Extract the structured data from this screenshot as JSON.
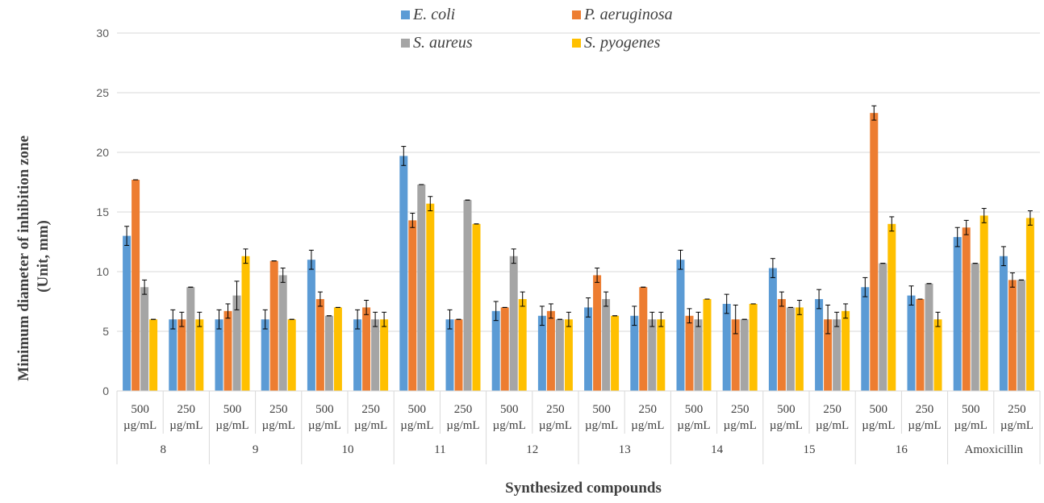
{
  "chart_data": {
    "type": "bar",
    "xlabel": "Synthesized compounds",
    "ylabel_lines": [
      "Minimum diameter of inhibition zone",
      "(Unit, mm)"
    ],
    "ylim": [
      0,
      30
    ],
    "yticks": [
      0,
      5,
      10,
      15,
      20,
      25,
      30
    ],
    "grid": true,
    "legend_position": "top",
    "groups": [
      "8",
      "9",
      "10",
      "11",
      "12",
      "13",
      "14",
      "15",
      "16",
      "Amoxicillin"
    ],
    "subcategories": [
      {
        "line1": "500",
        "line2": "µg/mL"
      },
      {
        "line1": "250",
        "line2": "µg/mL"
      }
    ],
    "series": [
      {
        "name": "E. coli",
        "color": "#5b9bd5",
        "values": [
          13.0,
          6.0,
          6.0,
          6.0,
          11.0,
          6.0,
          19.7,
          6.0,
          6.7,
          6.3,
          7.0,
          6.3,
          11.0,
          7.3,
          10.3,
          7.7,
          8.7,
          8.0,
          12.9,
          11.3
        ],
        "errors": [
          0.8,
          0.8,
          0.8,
          0.8,
          0.8,
          0.8,
          0.8,
          0.8,
          0.8,
          0.8,
          0.8,
          0.8,
          0.8,
          0.8,
          0.8,
          0.8,
          0.8,
          0.8,
          0.8,
          0.8
        ]
      },
      {
        "name": "P. aeruginosa",
        "color": "#ed7d31",
        "values": [
          17.7,
          6.0,
          6.7,
          10.9,
          7.7,
          7.0,
          14.3,
          6.0,
          7.0,
          6.7,
          9.7,
          8.7,
          6.3,
          6.0,
          7.7,
          6.0,
          23.3,
          7.7,
          13.7,
          9.3
        ],
        "errors": [
          0,
          0.6,
          0.6,
          0,
          0.6,
          0.6,
          0.6,
          0,
          0,
          0.6,
          0.6,
          0,
          0.6,
          1.2,
          0.6,
          1.2,
          0.6,
          0,
          0.6,
          0.6
        ]
      },
      {
        "name": "S. aureus",
        "color": "#a5a5a5",
        "values": [
          8.7,
          8.7,
          8.0,
          9.7,
          6.3,
          6.0,
          17.3,
          16.0,
          11.3,
          6.0,
          7.7,
          6.0,
          6.0,
          6.0,
          7.0,
          6.0,
          10.7,
          9.0,
          10.7,
          9.3
        ],
        "errors": [
          0.6,
          0,
          1.2,
          0.6,
          0,
          0.6,
          0,
          0,
          0.6,
          0,
          0.6,
          0.6,
          0.6,
          0,
          0,
          0.6,
          0,
          0,
          0,
          0
        ]
      },
      {
        "name": "S. pyogenes",
        "color": "#ffc000",
        "values": [
          6.0,
          6.0,
          11.3,
          6.0,
          7.0,
          6.0,
          15.7,
          14.0,
          7.7,
          6.0,
          6.3,
          6.0,
          7.7,
          7.3,
          7.0,
          6.7,
          14.0,
          6.0,
          14.7,
          14.5
        ],
        "errors": [
          0,
          0.6,
          0.6,
          0,
          0,
          0.6,
          0.6,
          0,
          0.6,
          0.6,
          0,
          0.6,
          0,
          0,
          0.6,
          0.6,
          0.6,
          0.6,
          0.6,
          0.6
        ]
      }
    ]
  }
}
